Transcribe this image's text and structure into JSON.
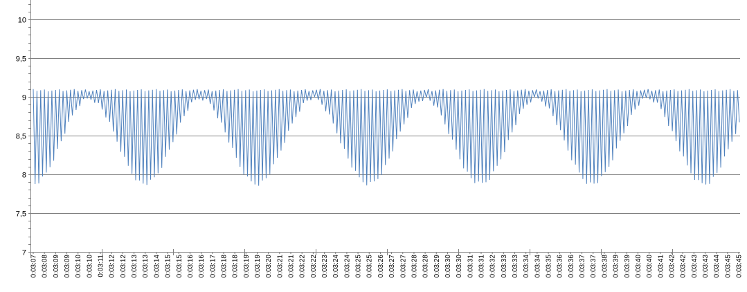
{
  "chart_data": {
    "type": "line",
    "title": "",
    "xlabel": "",
    "ylabel": "",
    "ylim": [
      7,
      10.25
    ],
    "y_ticks": [
      "7",
      "7,5",
      "8",
      "8,5",
      "9",
      "9,5",
      "10"
    ],
    "y_tick_values": [
      7,
      7.5,
      8,
      8.5,
      9,
      9.5,
      10
    ],
    "x_tick_labels": [
      "0:03:07",
      "0:03:08",
      "0:03:09",
      "0:03:09",
      "0:03:10",
      "0:03:10",
      "0:03:11",
      "0:03:12",
      "0:03:12",
      "0:03:13",
      "0:03:13",
      "0:03:14",
      "0:03:15",
      "0:03:15",
      "0:03:16",
      "0:03:16",
      "0:03:17",
      "0:03:18",
      "0:03:18",
      "0:03:19",
      "0:03:19",
      "0:03:20",
      "0:03:21",
      "0:03:21",
      "0:03:22",
      "0:03:22",
      "0:03:23",
      "0:03:24",
      "0:03:24",
      "0:03:25",
      "0:03:25",
      "0:03:26",
      "0:03:27",
      "0:03:27",
      "0:03:28",
      "0:03:28",
      "0:03:29",
      "0:03:30",
      "0:03:30",
      "0:03:31",
      "0:03:31",
      "0:03:32",
      "0:03:33",
      "0:03:33",
      "0:03:34",
      "0:03:34",
      "0:03:35",
      "0:03:36",
      "0:03:36",
      "0:03:37",
      "0:03:37",
      "0:03:38",
      "0:03:39",
      "0:03:39",
      "0:03:40",
      "0:03:40",
      "0:03:41",
      "0:03:42",
      "0:03:42",
      "0:03:43",
      "0:03:43",
      "0:03:44",
      "0:03:45",
      "0:03:45"
    ],
    "grid": true,
    "legend": "none",
    "series": [
      {
        "color": "#4f81bd",
        "points": 380,
        "max": 9.1,
        "min_range": [
          7.85,
          8.95
        ],
        "envelope_period_points": 60
      }
    ],
    "colors": {
      "line": "#4f81bd",
      "grid": "#7f7f7f",
      "axis": "#7f7f7f"
    }
  }
}
